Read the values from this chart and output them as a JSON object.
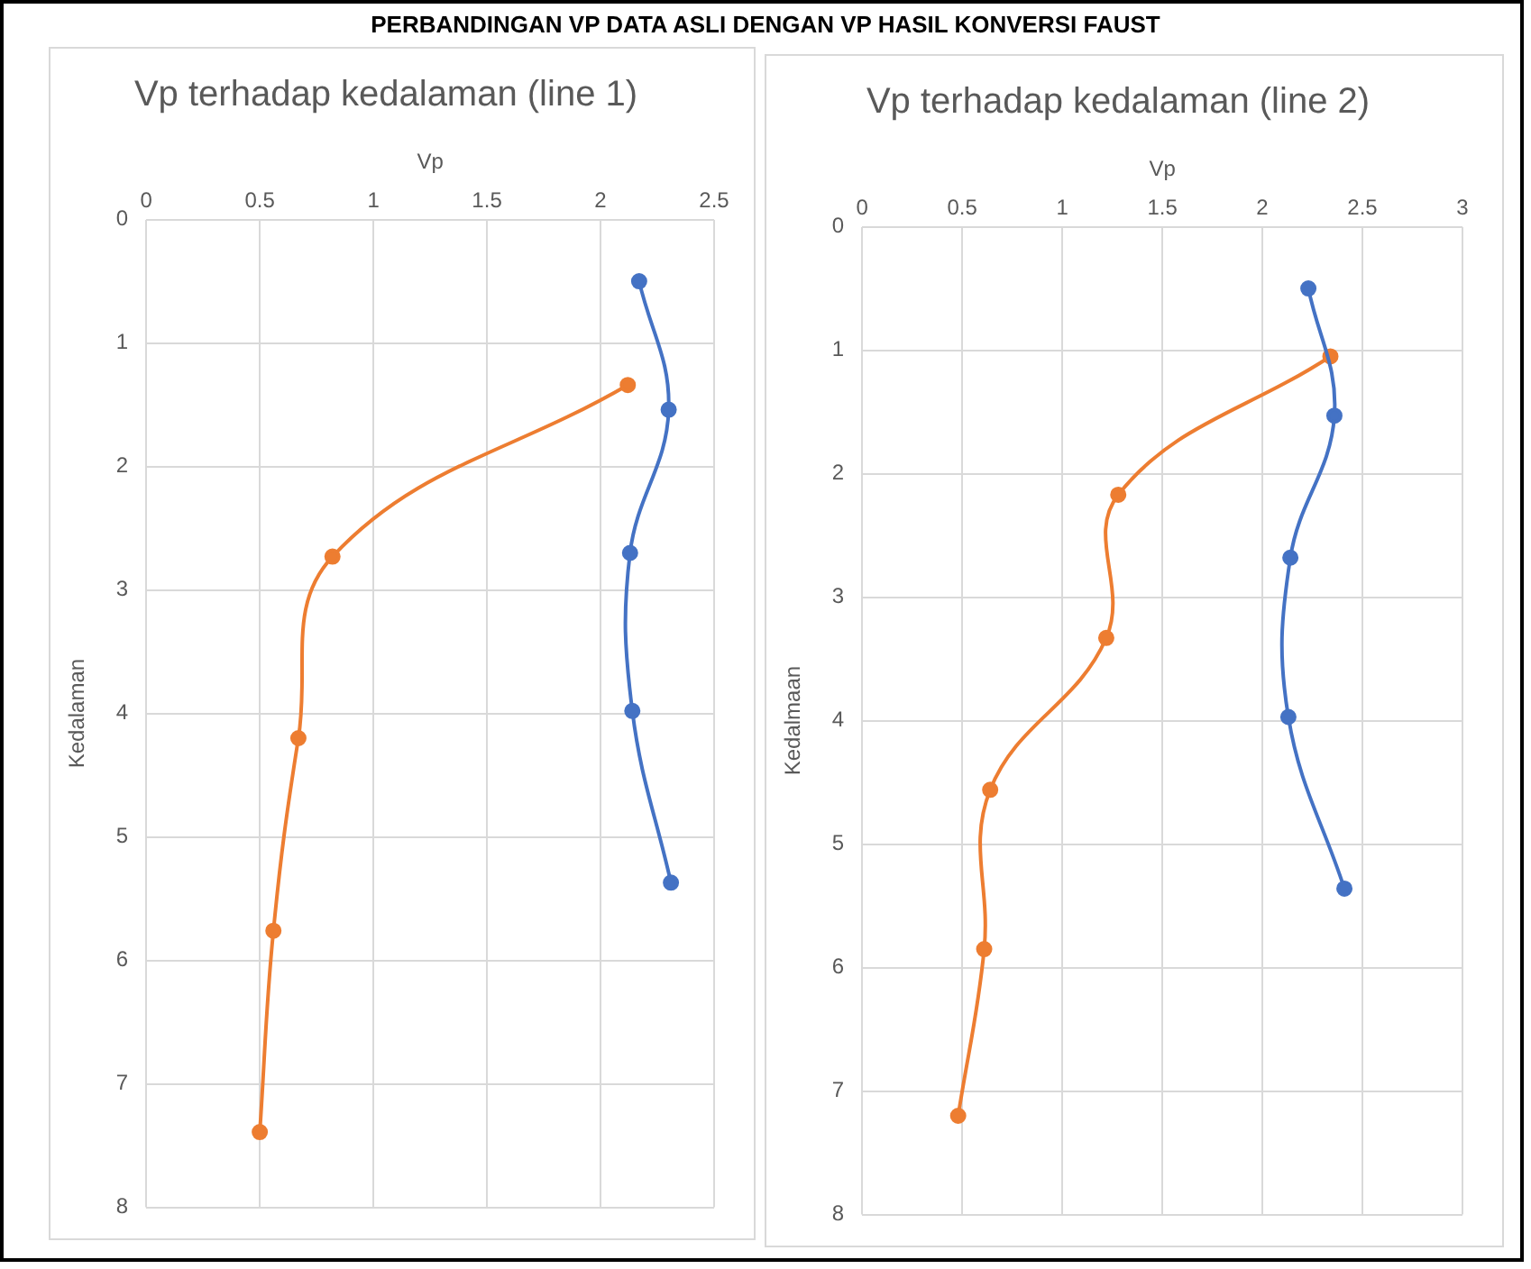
{
  "chart_data": [
    {
      "type": "other",
      "title": "PERBANDINGAN VP DATA ASLI DENGAN VP HASIL KONVERSI FAUST"
    },
    {
      "type": "line",
      "title": "Vp terhadap kedalaman (line 1)",
      "xlabel": "Vp",
      "ylabel": "Kedalaman",
      "xlim": [
        0,
        2.5
      ],
      "xticks": [
        0,
        0.5,
        1,
        1.5,
        2,
        2.5
      ],
      "ylim": [
        8,
        0
      ],
      "yticks": [
        0,
        1,
        2,
        3,
        4,
        5,
        6,
        7,
        8
      ],
      "grid": true,
      "marker": "circle",
      "series": [
        {
          "color": "#4472c4",
          "x": [
            2.17,
            2.3,
            2.13,
            2.14,
            2.31
          ],
          "values": [
            0.5,
            1.54,
            2.7,
            3.98,
            5.37
          ]
        },
        {
          "color": "#ed7d31",
          "x": [
            2.12,
            0.82,
            0.67,
            0.56,
            0.5
          ],
          "values": [
            1.34,
            2.73,
            4.2,
            5.76,
            7.39
          ]
        }
      ]
    },
    {
      "type": "line",
      "title": "Vp terhadap kedalaman (line 2)",
      "xlabel": "Vp",
      "ylabel": "Kedalmaan",
      "xlim": [
        0,
        3
      ],
      "xticks": [
        0,
        0.5,
        1,
        1.5,
        2,
        2.5,
        3
      ],
      "ylim": [
        8,
        0
      ],
      "yticks": [
        0,
        1,
        2,
        3,
        4,
        5,
        6,
        7,
        8
      ],
      "grid": true,
      "marker": "circle",
      "series": [
        {
          "color": "#4472c4",
          "x": [
            2.23,
            2.36,
            2.14,
            2.13,
            2.41
          ],
          "values": [
            0.5,
            1.53,
            2.68,
            3.97,
            5.36
          ]
        },
        {
          "color": "#ed7d31",
          "x": [
            2.34,
            1.28,
            1.22,
            0.64,
            0.61,
            0.48
          ],
          "values": [
            1.05,
            2.17,
            3.33,
            4.56,
            5.85,
            7.2
          ]
        }
      ]
    }
  ]
}
